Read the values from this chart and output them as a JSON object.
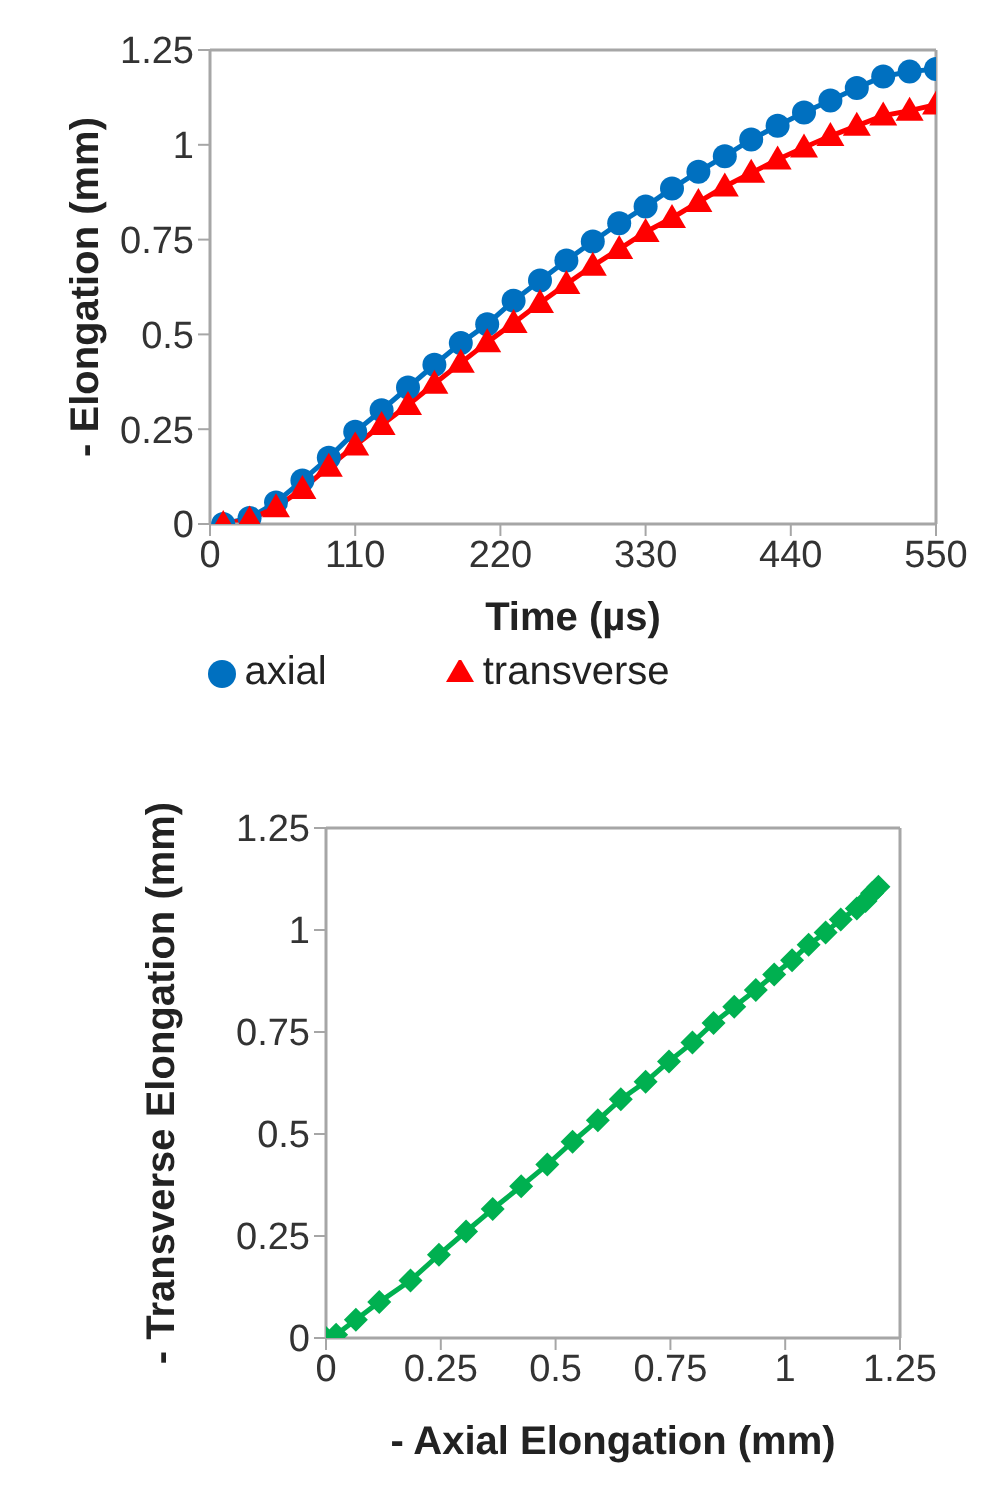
{
  "chart_data": [
    {
      "type": "line",
      "xlabel": "Time (µs)",
      "ylabel": "- Elongation (mm)",
      "x": [
        10,
        30,
        50,
        70,
        90,
        110,
        130,
        150,
        170,
        190,
        210,
        230,
        250,
        270,
        290,
        310,
        330,
        350,
        370,
        390,
        410,
        430,
        450,
        470,
        490,
        510,
        530,
        550
      ],
      "xlim": [
        0,
        550
      ],
      "xticks": [
        0,
        110,
        220,
        330,
        440,
        550
      ],
      "ylim": [
        0,
        1.25
      ],
      "yticks": [
        0,
        0.25,
        0.5,
        0.75,
        1,
        1.25
      ],
      "legend": "bottom",
      "series": [
        {
          "name": "axial",
          "color": "#0070c0",
          "marker": "circle",
          "values": [
            0,
            0.016,
            0.057,
            0.115,
            0.175,
            0.243,
            0.3,
            0.36,
            0.42,
            0.477,
            0.527,
            0.589,
            0.642,
            0.695,
            0.745,
            0.793,
            0.837,
            0.885,
            0.929,
            0.97,
            1.014,
            1.05,
            1.085,
            1.117,
            1.15,
            1.18,
            1.193,
            1.2
          ]
        },
        {
          "name": "transverse",
          "color": "#ff0000",
          "marker": "triangle",
          "values": [
            0,
            0.012,
            0.044,
            0.092,
            0.151,
            0.207,
            0.261,
            0.314,
            0.37,
            0.425,
            0.479,
            0.53,
            0.583,
            0.633,
            0.681,
            0.725,
            0.77,
            0.807,
            0.849,
            0.89,
            0.926,
            0.961,
            0.993,
            1.023,
            1.05,
            1.077,
            1.09,
            1.106
          ]
        }
      ]
    },
    {
      "type": "line",
      "xlabel": "- Axial Elongation (mm)",
      "ylabel": "- Transverse Elongation (mm)",
      "xlim": [
        0,
        1.25
      ],
      "xticks": [
        0,
        0.25,
        0.5,
        0.75,
        1,
        1.25
      ],
      "ylim": [
        0,
        1.25
      ],
      "yticks": [
        0,
        0.25,
        0.5,
        0.75,
        1,
        1.25
      ],
      "legend": false,
      "series": [
        {
          "color": "#00b050",
          "marker": "diamond",
          "x": [
            0,
            0.022,
            0.065,
            0.116,
            0.184,
            0.246,
            0.305,
            0.363,
            0.425,
            0.482,
            0.537,
            0.592,
            0.642,
            0.696,
            0.747,
            0.798,
            0.844,
            0.889,
            0.936,
            0.976,
            1.015,
            1.051,
            1.088,
            1.121,
            1.156,
            1.175,
            1.189,
            1.203
          ],
          "values": [
            0,
            0.008,
            0.045,
            0.088,
            0.141,
            0.204,
            0.261,
            0.316,
            0.372,
            0.425,
            0.481,
            0.534,
            0.585,
            0.628,
            0.678,
            0.724,
            0.772,
            0.812,
            0.853,
            0.891,
            0.926,
            0.964,
            0.994,
            1.026,
            1.053,
            1.071,
            1.09,
            1.106
          ]
        }
      ]
    }
  ]
}
